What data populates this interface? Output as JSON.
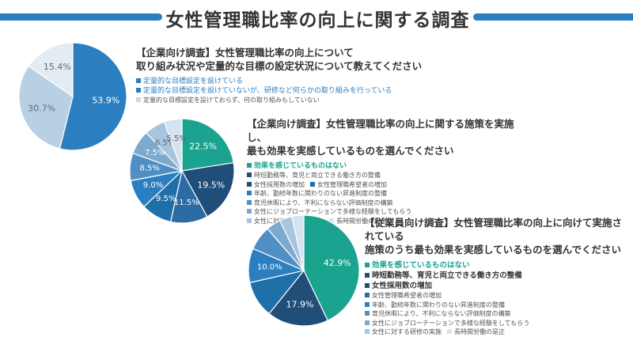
{
  "page": {
    "title": "女性管理職比率の向上に関する調査"
  },
  "charts": [
    {
      "heading_lines": [
        "【企業向け調査】女性管理職比率の向上について",
        "取り組み状況や定量的な目標の設定状況について教えてください"
      ],
      "legend": [
        {
          "label": "定量的な目標設定を設けている",
          "color": "#2b7fc0"
        },
        {
          "label": "定量的な目標設定を設けていないが、研修など何らかの取り組みを行っている",
          "color": "#2b7fc0"
        },
        {
          "label": "定量的な目標設定を設けておらず、何の取り組みもしていない",
          "color": "#c9d9e6"
        }
      ]
    },
    {
      "heading_lines": [
        "【企業向け調査】女性管理職比率の向上に関する施策を実施し、",
        "最も効果を実感しているものを選んでください"
      ],
      "legend": [
        {
          "label": "効果を感じているものはない",
          "color": "#1aa38f"
        },
        {
          "label": "時短勤務等、育児と両立できる働き方の整備",
          "color": "#1f4e79"
        },
        {
          "label": "女性採用数の増加",
          "color": "#1f4e79"
        },
        {
          "label": "女性管理職希望者の増加",
          "color": "#1f6fa8"
        },
        {
          "label": "年齢、勤続年数に関わりのない昇進制度の整備",
          "color": "#2b7fc0"
        },
        {
          "label": "育児休暇により、不利にならない評価制度の構築",
          "color": "#4f8fc4"
        },
        {
          "label": "女性にジョブローテーションで多様な経験をしてもらう",
          "color": "#7ea9cf"
        },
        {
          "label": "女性に対する研修の実施",
          "color": "#a8c5df"
        },
        {
          "label": "長時間労働の是正",
          "color": "#d6e3ee"
        }
      ]
    },
    {
      "heading_lines": [
        "【従業員向け調査】女性管理職比率の向上に向けて実施されている",
        "施策のうち最も効果を実感しているものを選んでください"
      ],
      "legend": [
        {
          "label": "効果を感じているものはない",
          "color": "#1aa38f"
        },
        {
          "label": "時短勤務等、育児と両立できる働き方の整備",
          "color": "#1f4e79"
        },
        {
          "label": "女性採用数の増加",
          "color": "#1f4e79"
        },
        {
          "label": "女性管理職希望者の増加",
          "color": "#1f6fa8"
        },
        {
          "label": "年齢、勤続年数に関わりのない昇進制度の整備",
          "color": "#2b7fc0"
        },
        {
          "label": "育児休暇により、不利にならない評価制度の構築",
          "color": "#4f8fc4"
        },
        {
          "label": "女性にジョブローテーションで多様な経験をしてもらう",
          "color": "#7ea9cf"
        },
        {
          "label": "女性に対する研修の実施",
          "color": "#a8c5df"
        },
        {
          "label": "長時間労働の是正",
          "color": "#d6e3ee"
        }
      ]
    }
  ],
  "chart_data": [
    {
      "type": "pie",
      "slices": [
        {
          "value": 53.9,
          "label": "53.9%",
          "color": "#2b7fc0"
        },
        {
          "value": 30.7,
          "label": "30.7%",
          "color": "#b8d0e4"
        },
        {
          "value": 15.4,
          "label": "15.4%",
          "color": "#e3ecf3"
        }
      ]
    },
    {
      "type": "pie",
      "slices": [
        {
          "value": 22.5,
          "label": "22.5%",
          "color": "#1aa38f"
        },
        {
          "value": 19.5,
          "label": "19.5%",
          "color": "#1f4e79"
        },
        {
          "value": 11.5,
          "label": "11.5%",
          "color": "#2a6ca3"
        },
        {
          "value": 9.5,
          "label": "9.5%",
          "color": "#1f6fa8"
        },
        {
          "value": 9.0,
          "label": "9.0%",
          "color": "#2b7fc0"
        },
        {
          "value": 8.5,
          "label": "8.5%",
          "color": "#4f8fc4"
        },
        {
          "value": 7.5,
          "label": "7.5%",
          "color": "#7ea9cf"
        },
        {
          "value": 6.5,
          "label": "6.5%",
          "color": "#a8c5df"
        },
        {
          "value": 5.5,
          "label": "5.5%",
          "color": "#d6e3ee"
        }
      ]
    },
    {
      "type": "pie",
      "slices": [
        {
          "value": 42.9,
          "label": "42.9%",
          "color": "#1aa38f"
        },
        {
          "value": 17.9,
          "label": "17.9%",
          "color": "#1f4e79"
        },
        {
          "value": 10.7,
          "label": "",
          "color": "#1f6fa8"
        },
        {
          "value": 10.0,
          "label": "10.0%",
          "color": "#2b7fc0"
        },
        {
          "value": 7.1,
          "label": "",
          "color": "#4f8fc4"
        },
        {
          "value": 4.3,
          "label": "",
          "color": "#7ea9cf"
        },
        {
          "value": 3.6,
          "label": "",
          "color": "#a8c5df"
        },
        {
          "value": 3.5,
          "label": "",
          "color": "#d6e3ee"
        }
      ]
    }
  ]
}
